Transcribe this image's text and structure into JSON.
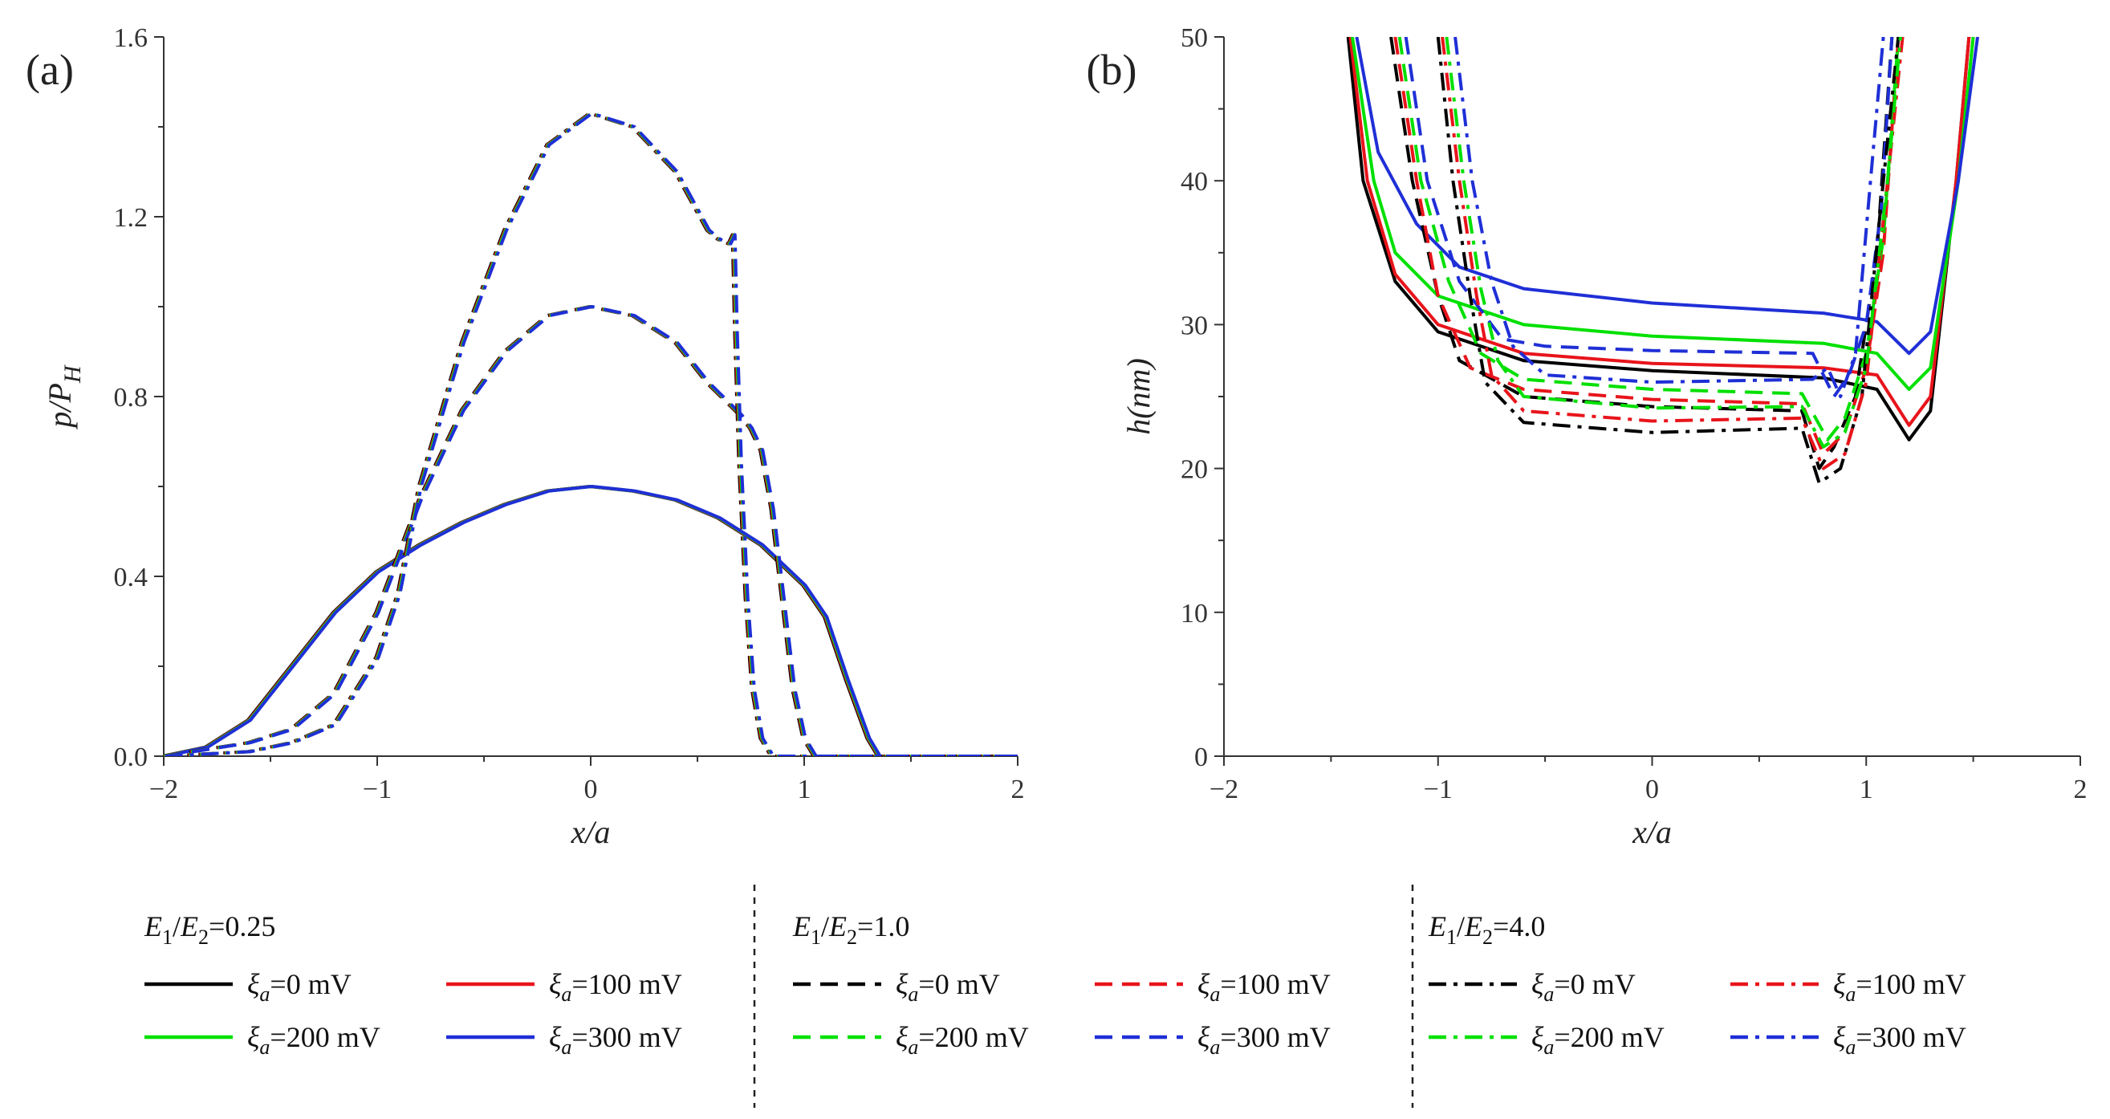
{
  "chart_data": [
    {
      "type": "line",
      "panel_label": "(a)",
      "xlabel": "x/a",
      "ylabel": "p/P",
      "ylabel_sub": "H",
      "xlim": [
        -2,
        2
      ],
      "ylim": [
        0,
        1.6
      ],
      "xticks": [
        "−2",
        "−1",
        "0",
        "1",
        "2"
      ],
      "yticks": [
        "0.0",
        "0.4",
        "0.8",
        "1.2",
        "1.6"
      ],
      "xtick_values": [
        -2,
        -1,
        0,
        1,
        2
      ],
      "ytick_values": [
        0,
        0.4,
        0.8,
        1.2,
        1.6
      ],
      "series_groups": [
        {
          "ratio": "0.25",
          "style": "solid",
          "points": [
            [
              -2.0,
              0.0
            ],
            [
              -1.8,
              0.02
            ],
            [
              -1.6,
              0.08
            ],
            [
              -1.4,
              0.2
            ],
            [
              -1.2,
              0.32
            ],
            [
              -1.0,
              0.41
            ],
            [
              -0.8,
              0.47
            ],
            [
              -0.6,
              0.52
            ],
            [
              -0.4,
              0.56
            ],
            [
              -0.2,
              0.59
            ],
            [
              0.0,
              0.6
            ],
            [
              0.2,
              0.59
            ],
            [
              0.4,
              0.57
            ],
            [
              0.6,
              0.53
            ],
            [
              0.8,
              0.47
            ],
            [
              1.0,
              0.38
            ],
            [
              1.1,
              0.31
            ],
            [
              1.2,
              0.17
            ],
            [
              1.3,
              0.04
            ],
            [
              1.35,
              0.0
            ],
            [
              2.0,
              0.0
            ]
          ]
        },
        {
          "ratio": "1.0",
          "style": "dash",
          "points": [
            [
              -2.0,
              0.0
            ],
            [
              -1.6,
              0.03
            ],
            [
              -1.4,
              0.06
            ],
            [
              -1.2,
              0.14
            ],
            [
              -1.0,
              0.32
            ],
            [
              -0.8,
              0.57
            ],
            [
              -0.6,
              0.77
            ],
            [
              -0.4,
              0.9
            ],
            [
              -0.2,
              0.98
            ],
            [
              0.0,
              1.0
            ],
            [
              0.2,
              0.98
            ],
            [
              0.4,
              0.92
            ],
            [
              0.55,
              0.83
            ],
            [
              0.7,
              0.76
            ],
            [
              0.75,
              0.73
            ],
            [
              0.8,
              0.68
            ],
            [
              0.85,
              0.55
            ],
            [
              0.9,
              0.35
            ],
            [
              0.95,
              0.15
            ],
            [
              1.0,
              0.04
            ],
            [
              1.05,
              0.0
            ],
            [
              2.0,
              0.0
            ]
          ]
        },
        {
          "ratio": "4.0",
          "style": "dashdot",
          "points": [
            [
              -2.0,
              0.0
            ],
            [
              -1.6,
              0.01
            ],
            [
              -1.4,
              0.03
            ],
            [
              -1.2,
              0.07
            ],
            [
              -1.0,
              0.22
            ],
            [
              -0.9,
              0.36
            ],
            [
              -0.8,
              0.6
            ],
            [
              -0.6,
              0.92
            ],
            [
              -0.4,
              1.17
            ],
            [
              -0.2,
              1.36
            ],
            [
              0.0,
              1.43
            ],
            [
              0.2,
              1.4
            ],
            [
              0.4,
              1.3
            ],
            [
              0.55,
              1.17
            ],
            [
              0.6,
              1.15
            ],
            [
              0.65,
              1.14
            ],
            [
              0.67,
              1.16
            ],
            [
              0.68,
              0.95
            ],
            [
              0.7,
              0.65
            ],
            [
              0.73,
              0.35
            ],
            [
              0.76,
              0.15
            ],
            [
              0.8,
              0.04
            ],
            [
              0.85,
              0.0
            ],
            [
              2.0,
              0.0
            ]
          ]
        }
      ]
    },
    {
      "type": "line",
      "panel_label": "(b)",
      "xlabel": "x/a",
      "ylabel": "h(nm)",
      "xlim": [
        -2,
        2
      ],
      "ylim": [
        0,
        50
      ],
      "xticks": [
        "−2",
        "−1",
        "0",
        "1",
        "2"
      ],
      "yticks": [
        "0",
        "10",
        "20",
        "30",
        "40",
        "50"
      ],
      "xtick_values": [
        -2,
        -1,
        0,
        1,
        2
      ],
      "ytick_values": [
        0,
        10,
        20,
        30,
        40,
        50
      ],
      "curves": [
        {
          "color": "#000000",
          "style": "solid",
          "points": [
            [
              -1.42,
              50
            ],
            [
              -1.35,
              40
            ],
            [
              -1.2,
              33
            ],
            [
              -1.0,
              29.5
            ],
            [
              -0.6,
              27.5
            ],
            [
              0.0,
              26.8
            ],
            [
              0.8,
              26.3
            ],
            [
              1.05,
              25.5
            ],
            [
              1.2,
              22
            ],
            [
              1.3,
              24
            ],
            [
              1.42,
              40
            ],
            [
              1.48,
              50
            ]
          ]
        },
        {
          "color": "#e8141b",
          "style": "solid",
          "points": [
            [
              -1.41,
              50
            ],
            [
              -1.33,
              40
            ],
            [
              -1.2,
              33.5
            ],
            [
              -1.0,
              30
            ],
            [
              -0.6,
              28
            ],
            [
              0.0,
              27.3
            ],
            [
              0.8,
              27
            ],
            [
              1.05,
              26.5
            ],
            [
              1.2,
              23
            ],
            [
              1.3,
              25
            ],
            [
              1.42,
              40
            ],
            [
              1.48,
              50
            ]
          ]
        },
        {
          "color": "#00e000",
          "style": "solid",
          "points": [
            [
              -1.4,
              50
            ],
            [
              -1.3,
              40
            ],
            [
              -1.2,
              35
            ],
            [
              -1.0,
              32
            ],
            [
              -0.6,
              30
            ],
            [
              0.0,
              29.2
            ],
            [
              0.8,
              28.7
            ],
            [
              1.05,
              28
            ],
            [
              1.2,
              25.5
            ],
            [
              1.3,
              27
            ],
            [
              1.43,
              40
            ],
            [
              1.5,
              50
            ]
          ]
        },
        {
          "color": "#1f2fd6",
          "style": "solid",
          "points": [
            [
              -1.38,
              50
            ],
            [
              -1.28,
              42
            ],
            [
              -1.1,
              37
            ],
            [
              -0.9,
              34
            ],
            [
              -0.6,
              32.5
            ],
            [
              0.0,
              31.5
            ],
            [
              0.8,
              30.8
            ],
            [
              1.05,
              30.2
            ],
            [
              1.2,
              28
            ],
            [
              1.3,
              29.5
            ],
            [
              1.43,
              40
            ],
            [
              1.52,
              50
            ]
          ]
        },
        {
          "color": "#000000",
          "style": "dash",
          "points": [
            [
              -1.22,
              50
            ],
            [
              -1.12,
              40
            ],
            [
              -1.0,
              32
            ],
            [
              -0.9,
              27.5
            ],
            [
              -0.6,
              25
            ],
            [
              0.0,
              24.3
            ],
            [
              0.7,
              24
            ],
            [
              0.78,
              20
            ],
            [
              0.85,
              21.5
            ],
            [
              0.95,
              25
            ],
            [
              1.05,
              35
            ],
            [
              1.12,
              50
            ]
          ]
        },
        {
          "color": "#e8141b",
          "style": "dash",
          "points": [
            [
              -1.2,
              50
            ],
            [
              -1.1,
              40
            ],
            [
              -1.0,
              32
            ],
            [
              -0.85,
              27
            ],
            [
              -0.6,
              25.5
            ],
            [
              0.0,
              24.8
            ],
            [
              0.7,
              24.5
            ],
            [
              0.8,
              21
            ],
            [
              0.9,
              22.5
            ],
            [
              1.0,
              27
            ],
            [
              1.08,
              35
            ],
            [
              1.15,
              50
            ]
          ]
        },
        {
          "color": "#00e000",
          "style": "dash",
          "points": [
            [
              -1.18,
              50
            ],
            [
              -1.08,
              40
            ],
            [
              -0.95,
              33
            ],
            [
              -0.8,
              28
            ],
            [
              -0.6,
              26.2
            ],
            [
              0.0,
              25.5
            ],
            [
              0.7,
              25.2
            ],
            [
              0.82,
              22
            ],
            [
              0.9,
              23.5
            ],
            [
              1.0,
              28
            ],
            [
              1.08,
              36
            ],
            [
              1.15,
              50
            ]
          ]
        },
        {
          "color": "#1f2fd6",
          "style": "dash",
          "points": [
            [
              -1.15,
              50
            ],
            [
              -1.05,
              40
            ],
            [
              -0.9,
              33
            ],
            [
              -0.7,
              29
            ],
            [
              -0.5,
              28.5
            ],
            [
              0.0,
              28.2
            ],
            [
              0.75,
              28
            ],
            [
              0.85,
              25
            ],
            [
              0.92,
              26.5
            ],
            [
              1.0,
              30
            ],
            [
              1.07,
              38
            ],
            [
              1.12,
              50
            ]
          ]
        },
        {
          "color": "#000000",
          "style": "dashdot",
          "points": [
            [
              -1.0,
              50
            ],
            [
              -0.93,
              40
            ],
            [
              -0.85,
              32
            ],
            [
              -0.78,
              26
            ],
            [
              -0.6,
              23.2
            ],
            [
              0.0,
              22.5
            ],
            [
              0.7,
              22.8
            ],
            [
              0.78,
              19
            ],
            [
              0.88,
              20
            ],
            [
              0.98,
              25
            ],
            [
              1.08,
              40
            ],
            [
              1.15,
              50
            ]
          ]
        },
        {
          "color": "#e8141b",
          "style": "dashdot",
          "points": [
            [
              -0.98,
              50
            ],
            [
              -0.9,
              40
            ],
            [
              -0.82,
              32
            ],
            [
              -0.75,
              26.5
            ],
            [
              -0.6,
              24
            ],
            [
              0.0,
              23.3
            ],
            [
              0.7,
              23.5
            ],
            [
              0.8,
              20
            ],
            [
              0.9,
              21
            ],
            [
              1.0,
              26
            ],
            [
              1.1,
              40
            ],
            [
              1.17,
              50
            ]
          ]
        },
        {
          "color": "#00e000",
          "style": "dashdot",
          "points": [
            [
              -0.96,
              50
            ],
            [
              -0.88,
              40
            ],
            [
              -0.8,
              32.5
            ],
            [
              -0.72,
              27.5
            ],
            [
              -0.6,
              25
            ],
            [
              0.0,
              24.2
            ],
            [
              0.7,
              24.3
            ],
            [
              0.8,
              21.5
            ],
            [
              0.9,
              22.5
            ],
            [
              1.0,
              27
            ],
            [
              1.1,
              40
            ],
            [
              1.16,
              50
            ]
          ]
        },
        {
          "color": "#1f2fd6",
          "style": "dashdot",
          "points": [
            [
              -0.92,
              50
            ],
            [
              -0.84,
              40
            ],
            [
              -0.75,
              33
            ],
            [
              -0.65,
              28.5
            ],
            [
              -0.5,
              26.5
            ],
            [
              0.0,
              26
            ],
            [
              0.75,
              26.2
            ],
            [
              0.82,
              27
            ],
            [
              0.88,
              25
            ],
            [
              0.95,
              28
            ],
            [
              1.02,
              40
            ],
            [
              1.08,
              50
            ]
          ]
        }
      ]
    }
  ],
  "legend": {
    "groups": [
      {
        "header_sym": "E",
        "header_sub1": "1",
        "header_slash": "/",
        "header_sub2": "2",
        "header_value": "=0.25",
        "style": "solid",
        "entries": [
          {
            "label": "ξ",
            "sub": "a",
            "value": "=0 mV",
            "color": "#000000"
          },
          {
            "label": "ξ",
            "sub": "a",
            "value": "=100 mV",
            "color": "#e8141b"
          },
          {
            "label": "ξ",
            "sub": "a",
            "value": "=200 mV",
            "color": "#00e000"
          },
          {
            "label": "ξ",
            "sub": "a",
            "value": "=300 mV",
            "color": "#1f2fd6"
          }
        ]
      },
      {
        "header_sym": "E",
        "header_sub1": "1",
        "header_slash": "/",
        "header_sub2": "2",
        "header_value": "=1.0",
        "style": "dash",
        "entries": [
          {
            "label": "ξ",
            "sub": "a",
            "value": "=0 mV",
            "color": "#000000"
          },
          {
            "label": "ξ",
            "sub": "a",
            "value": "=100 mV",
            "color": "#e8141b"
          },
          {
            "label": "ξ",
            "sub": "a",
            "value": "=200 mV",
            "color": "#00e000"
          },
          {
            "label": "ξ",
            "sub": "a",
            "value": "=300 mV",
            "color": "#1f2fd6"
          }
        ]
      },
      {
        "header_sym": "E",
        "header_sub1": "1",
        "header_slash": "/",
        "header_sub2": "2",
        "header_value": "=4.0",
        "style": "dashdot",
        "entries": [
          {
            "label": "ξ",
            "sub": "a",
            "value": "=0  mV",
            "color": "#000000"
          },
          {
            "label": "ξ",
            "sub": "a",
            "value": "=100 mV",
            "color": "#e8141b"
          },
          {
            "label": "ξ",
            "sub": "a",
            "value": "=200 mV",
            "color": "#00e000"
          },
          {
            "label": "ξ",
            "sub": "a",
            "value": "=300 mV",
            "color": "#1f2fd6"
          }
        ]
      }
    ]
  },
  "colors": {
    "black": "#000000",
    "red": "#e8141b",
    "green": "#00e000",
    "blue": "#1f2fd6"
  }
}
